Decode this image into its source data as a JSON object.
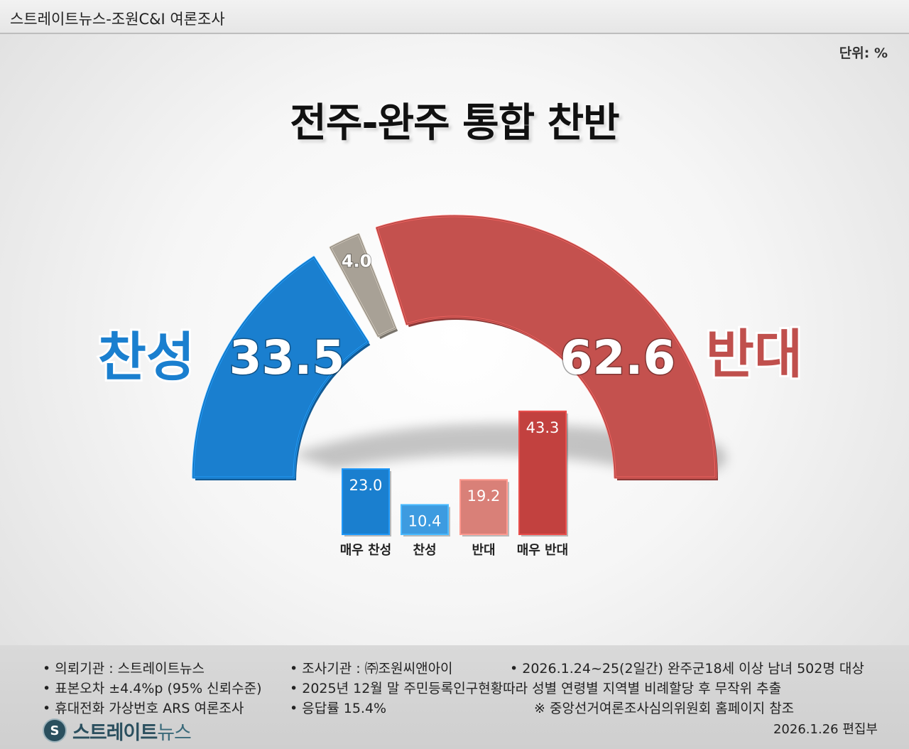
{
  "header": {
    "source": "스트레이트뉴스-조원C&I 여론조사"
  },
  "unit_label": "단위: %",
  "chart_data": [
    {
      "type": "pie",
      "title": "전주-완주 통합 찬반",
      "categories": [
        "찬성",
        "",
        "반대"
      ],
      "values": [
        33.5,
        4.0,
        62.6
      ],
      "labels": {
        "left": "찬성",
        "right": "반대"
      },
      "colors": [
        "#1a7fcf",
        "#a8a196",
        "#c4514e"
      ]
    },
    {
      "type": "bar",
      "categories": [
        "매우 찬성",
        "찬성",
        "반대",
        "매우 반대"
      ],
      "values": [
        23.0,
        10.4,
        19.2,
        43.3
      ],
      "value_labels": [
        "23.0",
        "10.4",
        "19.2",
        "43.3"
      ],
      "colors": [
        "#1a7fcf",
        "#3d9be0",
        "#d98078",
        "#c2413f"
      ]
    }
  ],
  "footer": {
    "notes": [
      "의뢰기관 : 스트레이트뉴스",
      "조사기관 : ㈜조원씨앤아이",
      "2026.1.24~25(2일간) 완주군18세 이상 남녀 502명 대상",
      "표본오차 ±4.4%p (95% 신뢰수준)",
      "2025년 12월 말 주민등록인구현황따라 성별 연령별 지역별 비례할당 후 무작위 추출",
      "휴대전화 가상번호 ARS 여론조사",
      "응답률 15.4%",
      "※ 중앙선거여론조사심의위원회 홈페이지 참조"
    ],
    "logo_main": "스트레이트",
    "logo_sub": "뉴스",
    "logo_mark": "S",
    "date": "2026.1.26  편집부"
  }
}
